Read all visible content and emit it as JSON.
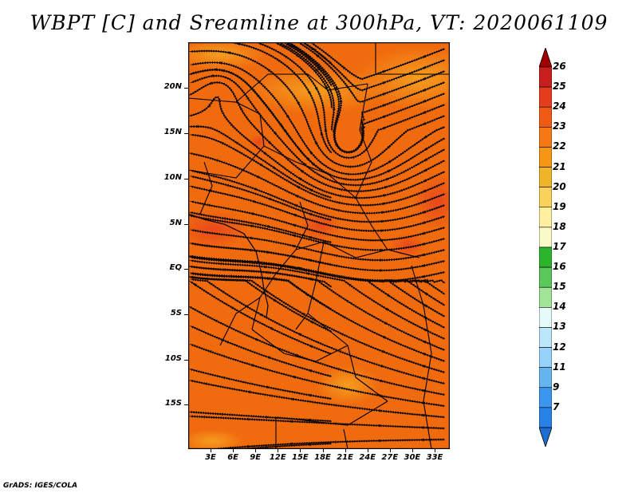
{
  "title": "WBPT [C] and Sreamline at 300hPa, VT: 2020061109",
  "credit": "GrADS: IGES/COLA",
  "map": {
    "lat_labels": [
      "20N",
      "15N",
      "10N",
      "5N",
      "EQ",
      "5S",
      "10S",
      "15S"
    ],
    "lon_labels": [
      "3E",
      "6E",
      "9E",
      "12E",
      "15E",
      "18E",
      "21E",
      "24E",
      "27E",
      "30E",
      "33E"
    ],
    "background_color": "#F06A0E"
  },
  "colorbar": {
    "levels": [
      "26",
      "25",
      "24",
      "23",
      "22",
      "21",
      "20",
      "19",
      "18",
      "17",
      "16",
      "15",
      "14",
      "13",
      "12",
      "11",
      "9",
      "7"
    ],
    "colors": [
      "#A00000",
      "#C81E1E",
      "#E63C1E",
      "#F05A14",
      "#F57814",
      "#F59614",
      "#F0B428",
      "#FAD25A",
      "#FFF0A0",
      "#FAFAC8",
      "#2DB42D",
      "#5AC85A",
      "#A0E696",
      "#E6FAFA",
      "#BEE6FA",
      "#96D2FA",
      "#64B4F0",
      "#3C96F0",
      "#2882E6",
      "#1E6ED2"
    ]
  }
}
